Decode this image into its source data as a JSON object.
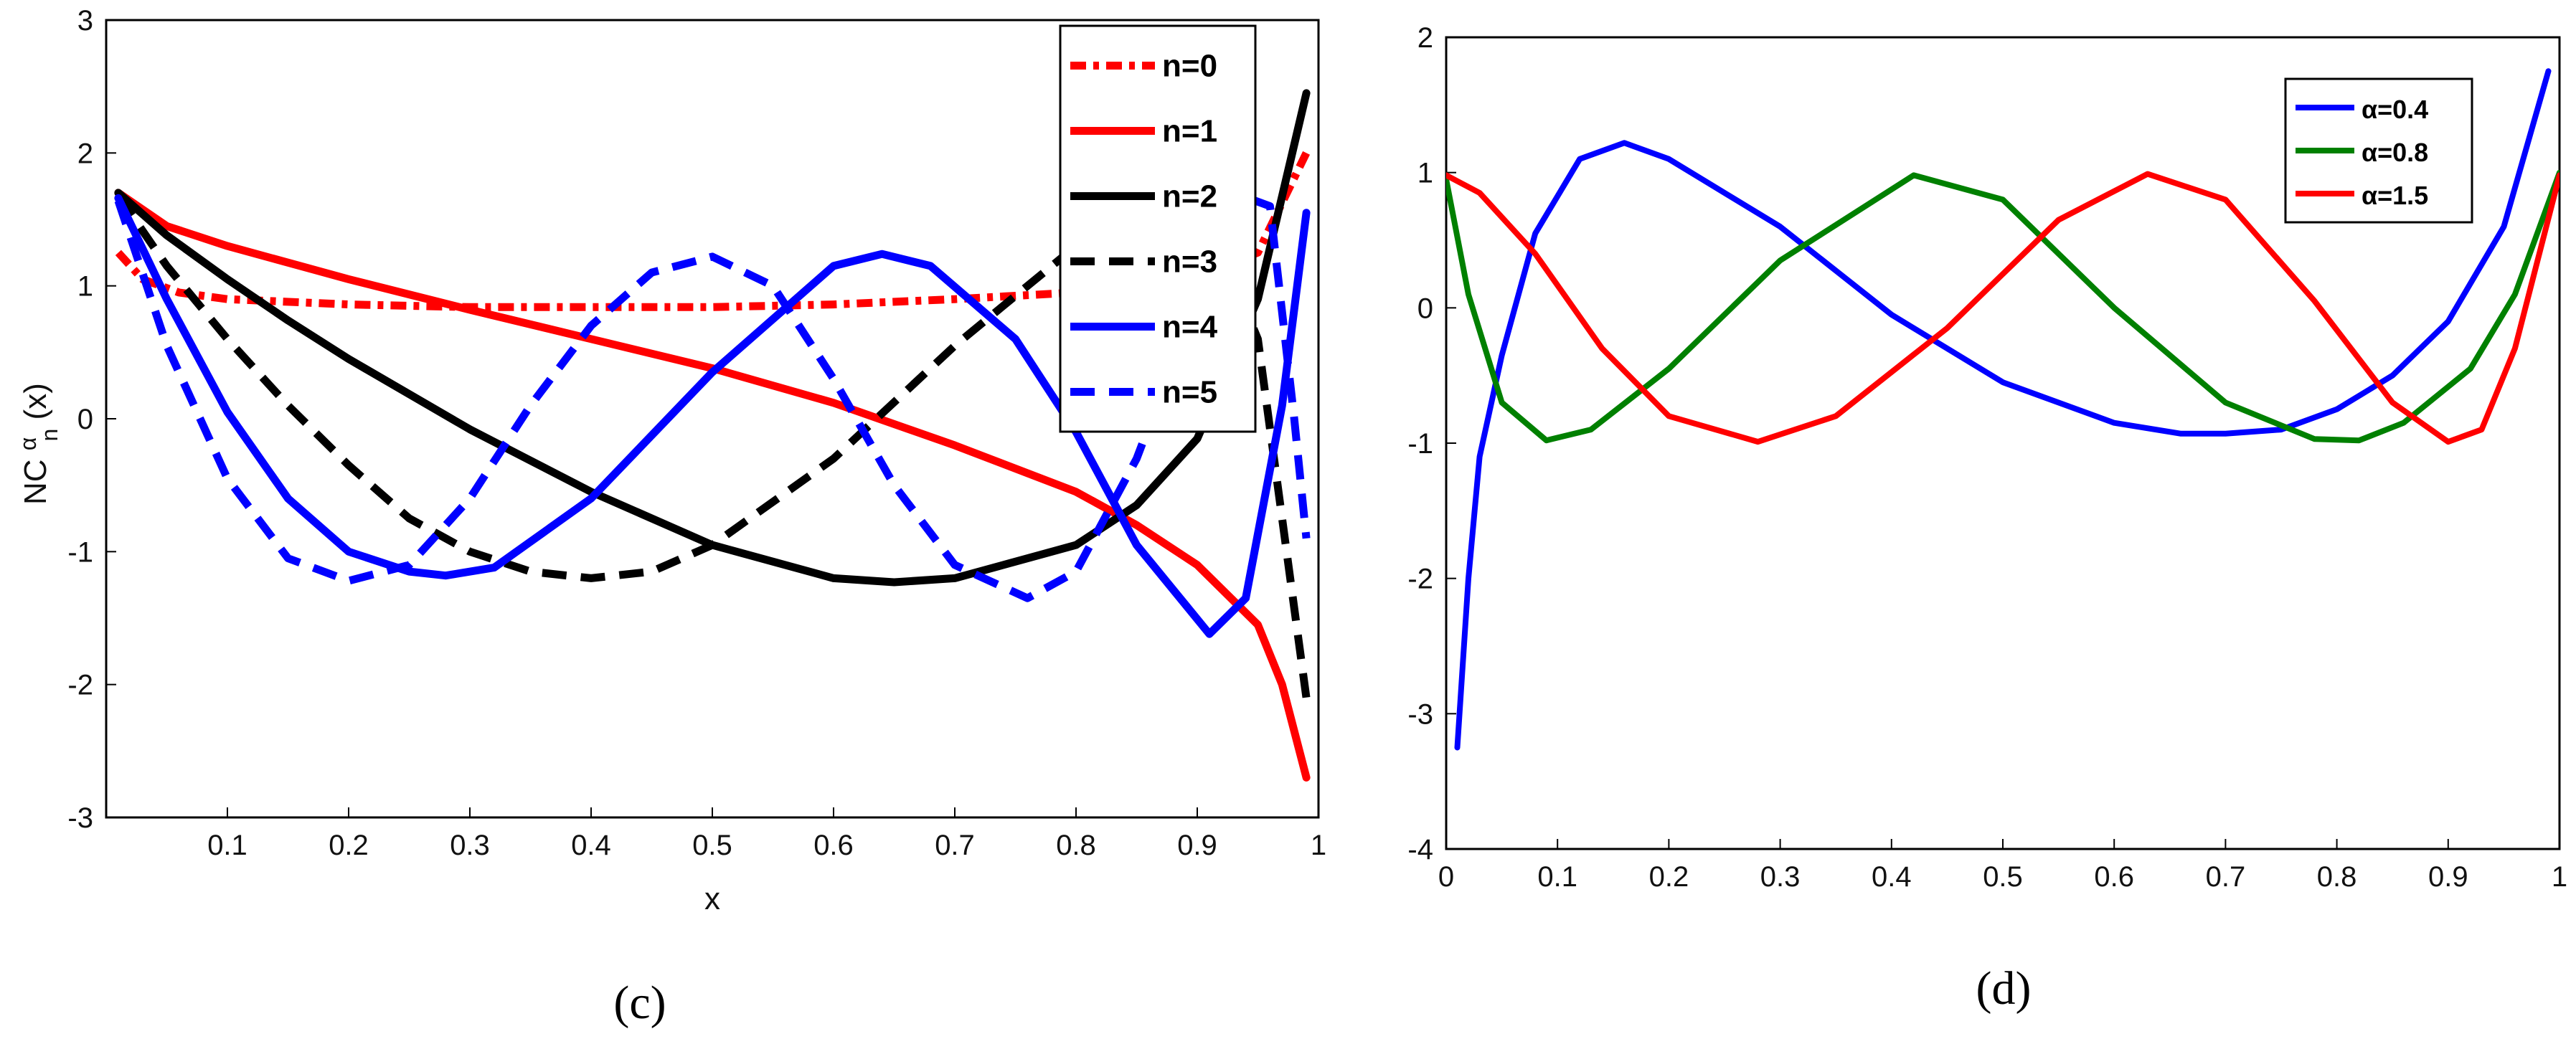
{
  "chart_data": [
    {
      "type": "line",
      "caption": "(c)",
      "xlabel": "x",
      "ylabel": "NC",
      "ylabel_superscript": "α",
      "ylabel_subscript": "n",
      "ylabel_arg": "(x)",
      "xlim": [
        0,
        1
      ],
      "ylim": [
        -3,
        3
      ],
      "xticks": [
        "0.1",
        "0.2",
        "0.3",
        "0.4",
        "0.5",
        "0.6",
        "0.7",
        "0.8",
        "0.9",
        "1"
      ],
      "yticks": [
        "-3",
        "-2",
        "-1",
        "0",
        "1",
        "2",
        "3"
      ],
      "legend_position": "top-right",
      "series": [
        {
          "name": "n=0",
          "color": "#ff0000",
          "dash": "dotted-dash",
          "x": [
            0.01,
            0.03,
            0.06,
            0.1,
            0.2,
            0.3,
            0.4,
            0.5,
            0.6,
            0.7,
            0.8,
            0.9,
            0.95,
            0.99
          ],
          "y": [
            1.25,
            1.05,
            0.95,
            0.9,
            0.86,
            0.84,
            0.84,
            0.84,
            0.86,
            0.9,
            0.95,
            1.07,
            1.25,
            2.0
          ]
        },
        {
          "name": "n=1",
          "color": "#ff0000",
          "dash": "solid",
          "x": [
            0.01,
            0.05,
            0.1,
            0.2,
            0.3,
            0.4,
            0.5,
            0.6,
            0.7,
            0.8,
            0.85,
            0.9,
            0.95,
            0.97,
            0.99
          ],
          "y": [
            1.7,
            1.45,
            1.3,
            1.05,
            0.82,
            0.6,
            0.38,
            0.12,
            -0.2,
            -0.55,
            -0.8,
            -1.1,
            -1.55,
            -2.0,
            -2.7
          ]
        },
        {
          "name": "n=2",
          "color": "#000000",
          "dash": "solid",
          "x": [
            0.01,
            0.05,
            0.1,
            0.15,
            0.2,
            0.3,
            0.4,
            0.5,
            0.6,
            0.65,
            0.7,
            0.8,
            0.85,
            0.9,
            0.95,
            0.99
          ],
          "y": [
            1.7,
            1.38,
            1.05,
            0.74,
            0.45,
            -0.08,
            -0.55,
            -0.95,
            -1.2,
            -1.23,
            -1.2,
            -0.95,
            -0.65,
            -0.15,
            0.9,
            2.45
          ]
        },
        {
          "name": "n=3",
          "color": "#000000",
          "dash": "dashed",
          "x": [
            0.01,
            0.05,
            0.1,
            0.15,
            0.2,
            0.25,
            0.3,
            0.35,
            0.4,
            0.45,
            0.5,
            0.6,
            0.7,
            0.8,
            0.85,
            0.9,
            0.95,
            0.99
          ],
          "y": [
            1.68,
            1.15,
            0.6,
            0.1,
            -0.35,
            -0.75,
            -1.0,
            -1.15,
            -1.2,
            -1.15,
            -0.95,
            -0.3,
            0.55,
            1.3,
            1.6,
            1.7,
            0.6,
            -2.1
          ]
        },
        {
          "name": "n=4",
          "color": "#0000ff",
          "dash": "solid",
          "x": [
            0.01,
            0.05,
            0.1,
            0.15,
            0.2,
            0.25,
            0.28,
            0.32,
            0.4,
            0.5,
            0.6,
            0.64,
            0.68,
            0.75,
            0.8,
            0.85,
            0.91,
            0.94,
            0.97,
            0.99
          ],
          "y": [
            1.66,
            0.9,
            0.05,
            -0.6,
            -1.0,
            -1.15,
            -1.18,
            -1.12,
            -0.6,
            0.35,
            1.15,
            1.24,
            1.15,
            0.6,
            -0.1,
            -0.95,
            -1.62,
            -1.35,
            0.1,
            1.55
          ]
        },
        {
          "name": "n=5",
          "color": "#0000ff",
          "dash": "dashed",
          "x": [
            0.01,
            0.05,
            0.1,
            0.15,
            0.2,
            0.25,
            0.3,
            0.35,
            0.4,
            0.45,
            0.5,
            0.55,
            0.6,
            0.65,
            0.7,
            0.76,
            0.8,
            0.85,
            0.9,
            0.93,
            0.96,
            0.98,
            0.99
          ],
          "y": [
            1.64,
            0.55,
            -0.45,
            -1.05,
            -1.22,
            -1.1,
            -0.6,
            0.1,
            0.7,
            1.1,
            1.22,
            1.0,
            0.3,
            -0.5,
            -1.1,
            -1.35,
            -1.15,
            -0.3,
            0.9,
            1.7,
            1.6,
            0.0,
            -0.9
          ]
        }
      ]
    },
    {
      "type": "line",
      "caption": "(d)",
      "xlim": [
        0,
        1
      ],
      "ylim": [
        -4,
        2
      ],
      "xticks": [
        "0",
        "0.1",
        "0.2",
        "0.3",
        "0.4",
        "0.5",
        "0.6",
        "0.7",
        "0.8",
        "0.9",
        "1"
      ],
      "yticks": [
        "-4",
        "-3",
        "-2",
        "-1",
        "0",
        "1",
        "2"
      ],
      "legend_position": "top-right",
      "series": [
        {
          "name": "α=0.4",
          "color": "#0000ff",
          "dash": "solid",
          "x": [
            0.01,
            0.02,
            0.03,
            0.05,
            0.08,
            0.12,
            0.16,
            0.2,
            0.3,
            0.4,
            0.5,
            0.6,
            0.66,
            0.7,
            0.75,
            0.8,
            0.85,
            0.9,
            0.95,
            0.99
          ],
          "y": [
            -3.25,
            -2.0,
            -1.1,
            -0.35,
            0.55,
            1.1,
            1.22,
            1.1,
            0.6,
            -0.05,
            -0.55,
            -0.85,
            -0.93,
            -0.93,
            -0.9,
            -0.75,
            -0.5,
            -0.1,
            0.6,
            1.75
          ]
        },
        {
          "name": "α=0.8",
          "color": "#008000",
          "dash": "solid",
          "x": [
            0.0,
            0.02,
            0.05,
            0.09,
            0.13,
            0.2,
            0.3,
            0.42,
            0.5,
            0.6,
            0.7,
            0.78,
            0.82,
            0.86,
            0.92,
            0.96,
            1.0
          ],
          "y": [
            0.95,
            0.1,
            -0.7,
            -0.98,
            -0.9,
            -0.45,
            0.35,
            0.98,
            0.8,
            0.0,
            -0.7,
            -0.97,
            -0.98,
            -0.85,
            -0.45,
            0.1,
            1.0
          ]
        },
        {
          "name": "α=1.5",
          "color": "#ff0000",
          "dash": "solid",
          "x": [
            0.0,
            0.03,
            0.08,
            0.14,
            0.2,
            0.28,
            0.35,
            0.45,
            0.55,
            0.63,
            0.7,
            0.78,
            0.85,
            0.9,
            0.93,
            0.96,
            1.0
          ],
          "y": [
            0.98,
            0.85,
            0.4,
            -0.3,
            -0.8,
            -0.99,
            -0.8,
            -0.15,
            0.65,
            0.99,
            0.8,
            0.05,
            -0.7,
            -0.99,
            -0.9,
            -0.3,
            0.98
          ]
        }
      ]
    }
  ]
}
